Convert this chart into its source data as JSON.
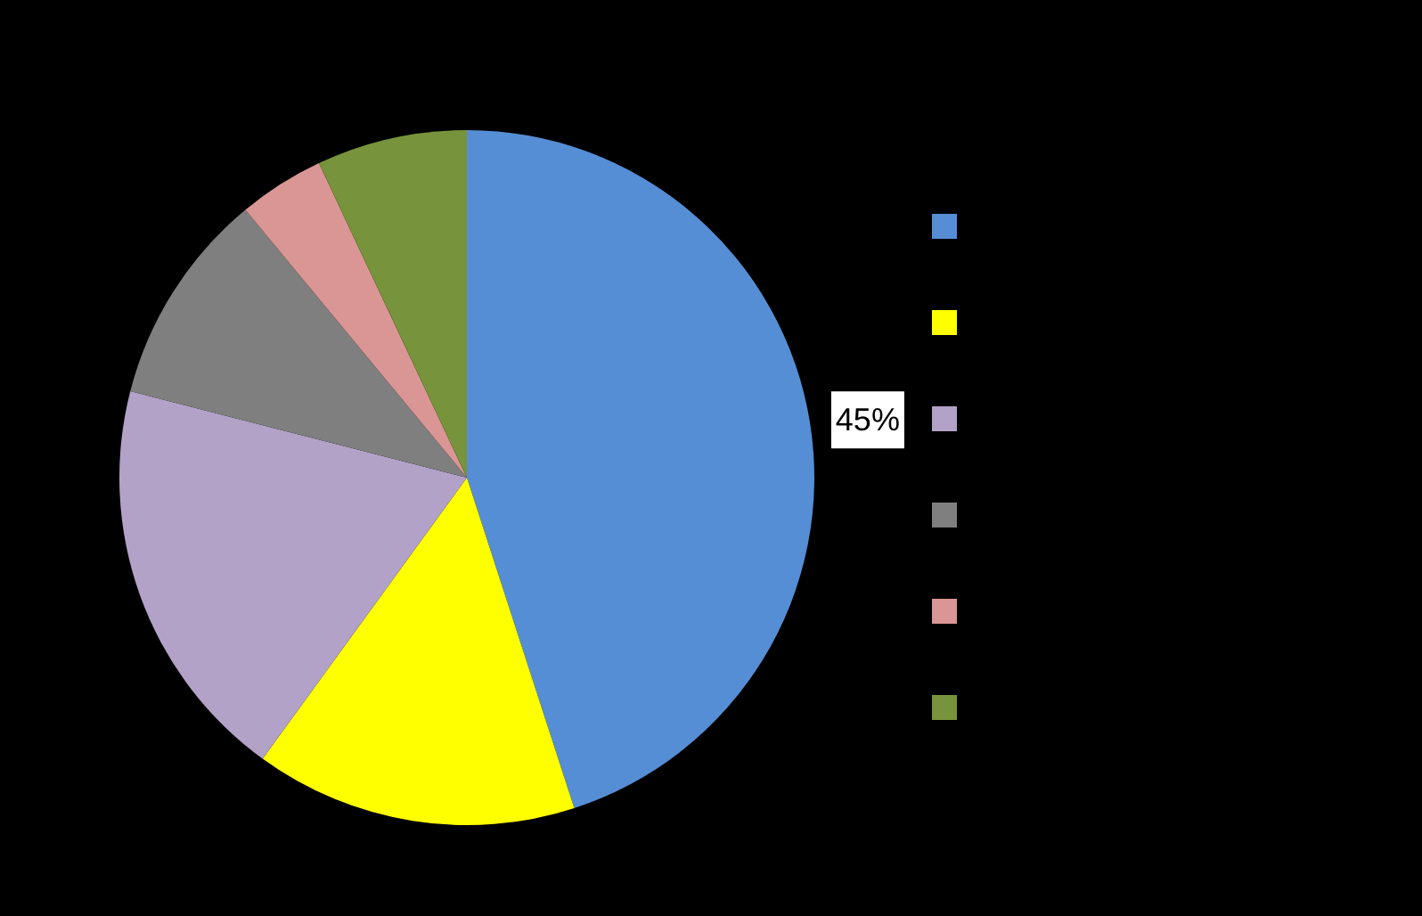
{
  "chart_data": {
    "type": "pie",
    "categories": [
      null,
      null,
      null,
      null,
      null,
      null
    ],
    "values": [
      45,
      15,
      19,
      10,
      4,
      7
    ],
    "colors": [
      "#558ed5",
      "#ffff00",
      "#b3a2c7",
      "#7f7f7f",
      "#d99694",
      "#77933c"
    ],
    "value_labels": [
      "45%",
      null,
      null,
      null,
      null,
      null
    ]
  }
}
